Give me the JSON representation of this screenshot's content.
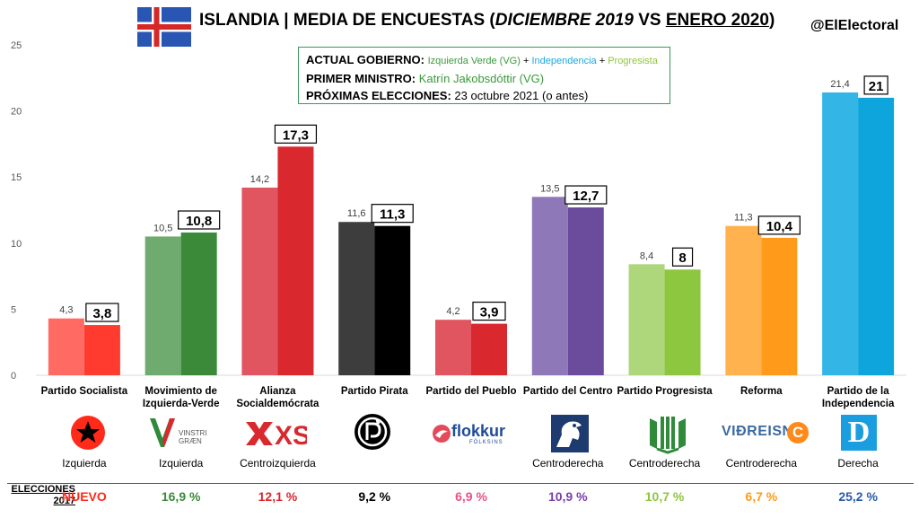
{
  "header": {
    "title_main": "ISLANDIA | MEDIA DE ENCUESTAS (",
    "title_month1": "DICIEMBRE 2019",
    "title_vs": " VS ",
    "title_month2": "ENERO 2020",
    "title_close": ")",
    "handle": "@ElElectoral"
  },
  "info": {
    "gov_label": "ACTUAL GOBIERNO:",
    "gov_p1": "Izquierda Verde (VG)",
    "gov_plus1": " + ",
    "gov_p2": "Independencia",
    "gov_plus2": " + ",
    "gov_p3": "Progresista",
    "pm_label": "PRIMER MINISTRO:",
    "pm_value": "Katrín Jakobsdóttir (VG)",
    "elec_label": "PRÓXIMAS ELECCIONES:",
    "elec_value": "23 octubre 2021 (o antes)"
  },
  "chart_data": {
    "type": "bar",
    "ylim": [
      0,
      25
    ],
    "yticks": [
      "0",
      "5",
      "10",
      "15",
      "20",
      "25"
    ],
    "grid": false,
    "categories": [
      "Partido Socialista",
      "Movimiento de Izquierda-Verde",
      "Alianza Socialdemócrata",
      "Partido Pirata",
      "Partido del Pueblo",
      "Partido del Centro",
      "Partido Progresista",
      "Reforma",
      "Partido de la Independencia"
    ],
    "category_lines": [
      [
        "Partido Socialista"
      ],
      [
        "Movimiento de",
        "Izquierda-Verde"
      ],
      [
        "Alianza",
        "Socialdemócrata"
      ],
      [
        "Partido Pirata"
      ],
      [
        "Partido del Pueblo"
      ],
      [
        "Partido del Centro"
      ],
      [
        "Partido Progresista"
      ],
      [
        "Reforma"
      ],
      [
        "Partido de la",
        "Independencia"
      ]
    ],
    "series": [
      {
        "values": [
          4.3,
          10.5,
          14.2,
          11.6,
          4.2,
          13.5,
          8.4,
          11.3,
          21.4
        ],
        "labels": [
          "4,3",
          "10,5",
          "14,2",
          "11,6",
          "4,2",
          "13,5",
          "8,4",
          "11,3",
          "21,4"
        ]
      },
      {
        "values": [
          3.8,
          10.8,
          17.3,
          11.3,
          3.9,
          12.7,
          8,
          10.4,
          21
        ],
        "labels": [
          "3,8",
          "10,8",
          "17,3",
          "11,3",
          "3,9",
          "12,7",
          "8",
          "10,4",
          "21"
        ]
      }
    ],
    "colors_light": [
      "#ff6b63",
      "#6fab6f",
      "#e05560",
      "#3d3d3d",
      "#e05560",
      "#8e78b8",
      "#aed67a",
      "#ffb24d",
      "#33b6e6"
    ],
    "colors_dark": [
      "#ff3b30",
      "#3a8a3a",
      "#d9282e",
      "#000000",
      "#d9282e",
      "#6a4b9c",
      "#8dc63f",
      "#ff9a1a",
      "#0ea5dd"
    ]
  },
  "ideology": [
    "Izquierda",
    "Izquierda",
    "Centroizquierda",
    "",
    "",
    "Centroderecha",
    "Centroderecha",
    "Centroderecha",
    "Derecha"
  ],
  "logos": {
    "vg_line1": "VINSTRI",
    "vg_line2": "GRÆN",
    "xs": "XS",
    "flokkur": "flokkur",
    "flokkur_sub": "FÓLKSINS",
    "vidreisn": "VIÐREISN",
    "vidreisn_c": "C",
    "d": "D"
  },
  "elections2017": {
    "label_line1": "ELECCIONES",
    "label_line2": "2017",
    "values": [
      "NUEVO",
      "16,9 %",
      "12,1 %",
      "9,2 %",
      "6,9 %",
      "10,9 %",
      "10,7 %",
      "6,7 %",
      "25,2 %"
    ],
    "colors": [
      "#ff2a1a",
      "#3a8a3a",
      "#d9282e",
      "#000000",
      "#e8508a",
      "#7a3fa8",
      "#8dc63f",
      "#ff9a1a",
      "#2a5aa8"
    ]
  }
}
